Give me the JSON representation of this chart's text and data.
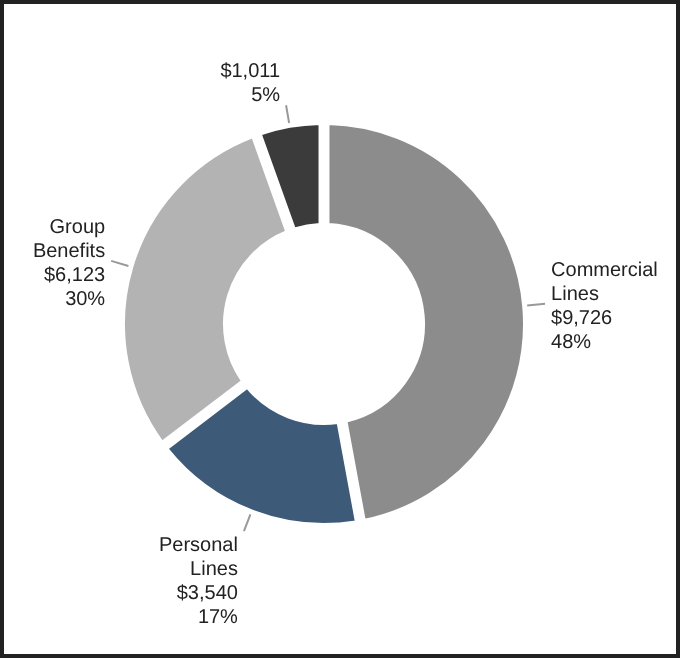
{
  "chart_data": {
    "type": "donut",
    "categories": [
      "Commercial Lines",
      "Personal Lines",
      "Group Benefits",
      null
    ],
    "values": [
      9726,
      3540,
      6123,
      1011
    ],
    "value_labels": [
      "$9,726\n48%",
      "$3,540\n17%",
      "$6,123\n30%",
      "$1,011\n5%"
    ],
    "colors": [
      "#8c8c8c",
      "#3d5a78",
      "#b3b3b3",
      "#3b3b3b"
    ]
  }
}
